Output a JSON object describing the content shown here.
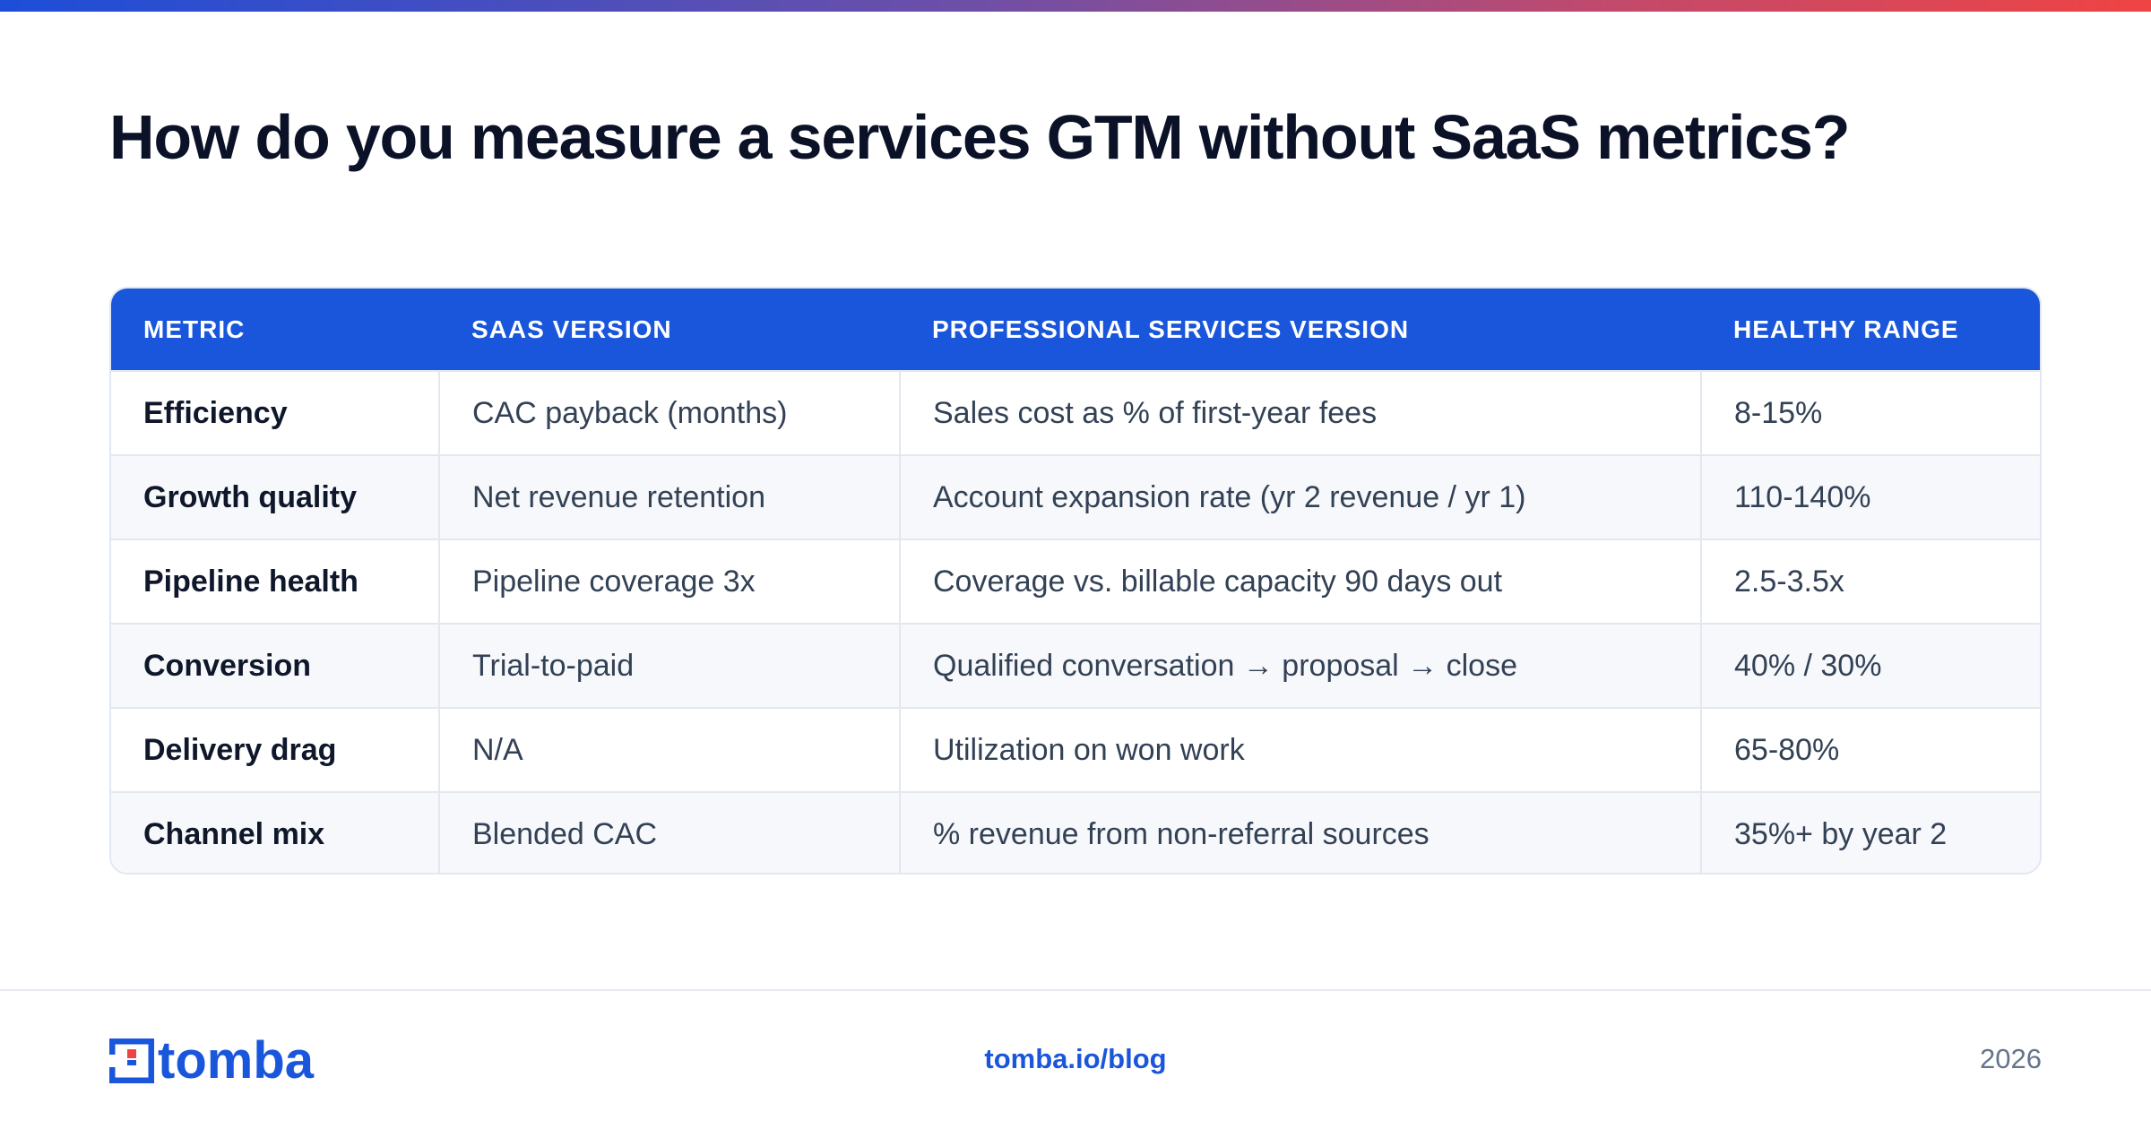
{
  "title": "How do you measure a services GTM without SaaS metrics?",
  "table": {
    "headers": [
      "METRIC",
      "SAAS VERSION",
      "PROFESSIONAL SERVICES VERSION",
      "HEALTHY RANGE"
    ],
    "rows": [
      [
        "Efficiency",
        "CAC payback (months)",
        "Sales cost as % of first-year fees",
        "8-15%"
      ],
      [
        "Growth quality",
        "Net revenue retention",
        "Account expansion rate (yr 2 revenue / yr 1)",
        "110-140%"
      ],
      [
        "Pipeline health",
        "Pipeline coverage 3x",
        "Coverage vs. billable capacity 90 days out",
        "2.5-3.5x"
      ],
      [
        "Conversion",
        "Trial-to-paid",
        "Qualified conversation → proposal → close",
        "40% / 30%"
      ],
      [
        "Delivery drag",
        "N/A",
        "Utilization on won work",
        "65-80%"
      ],
      [
        "Channel mix",
        "Blended CAC",
        "% revenue from non-referral sources",
        "35%+ by year 2"
      ]
    ]
  },
  "footer": {
    "logo_text": "tomba",
    "link": "tomba.io/blog",
    "year": "2026"
  },
  "colors": {
    "accent": "#1a56db",
    "title": "#0b1228",
    "body_text": "#334155",
    "row_alt": "#f6f8fb",
    "border": "#e2e8f0",
    "gradient_start": "#1d4ed8",
    "gradient_end": "#ef4444"
  }
}
